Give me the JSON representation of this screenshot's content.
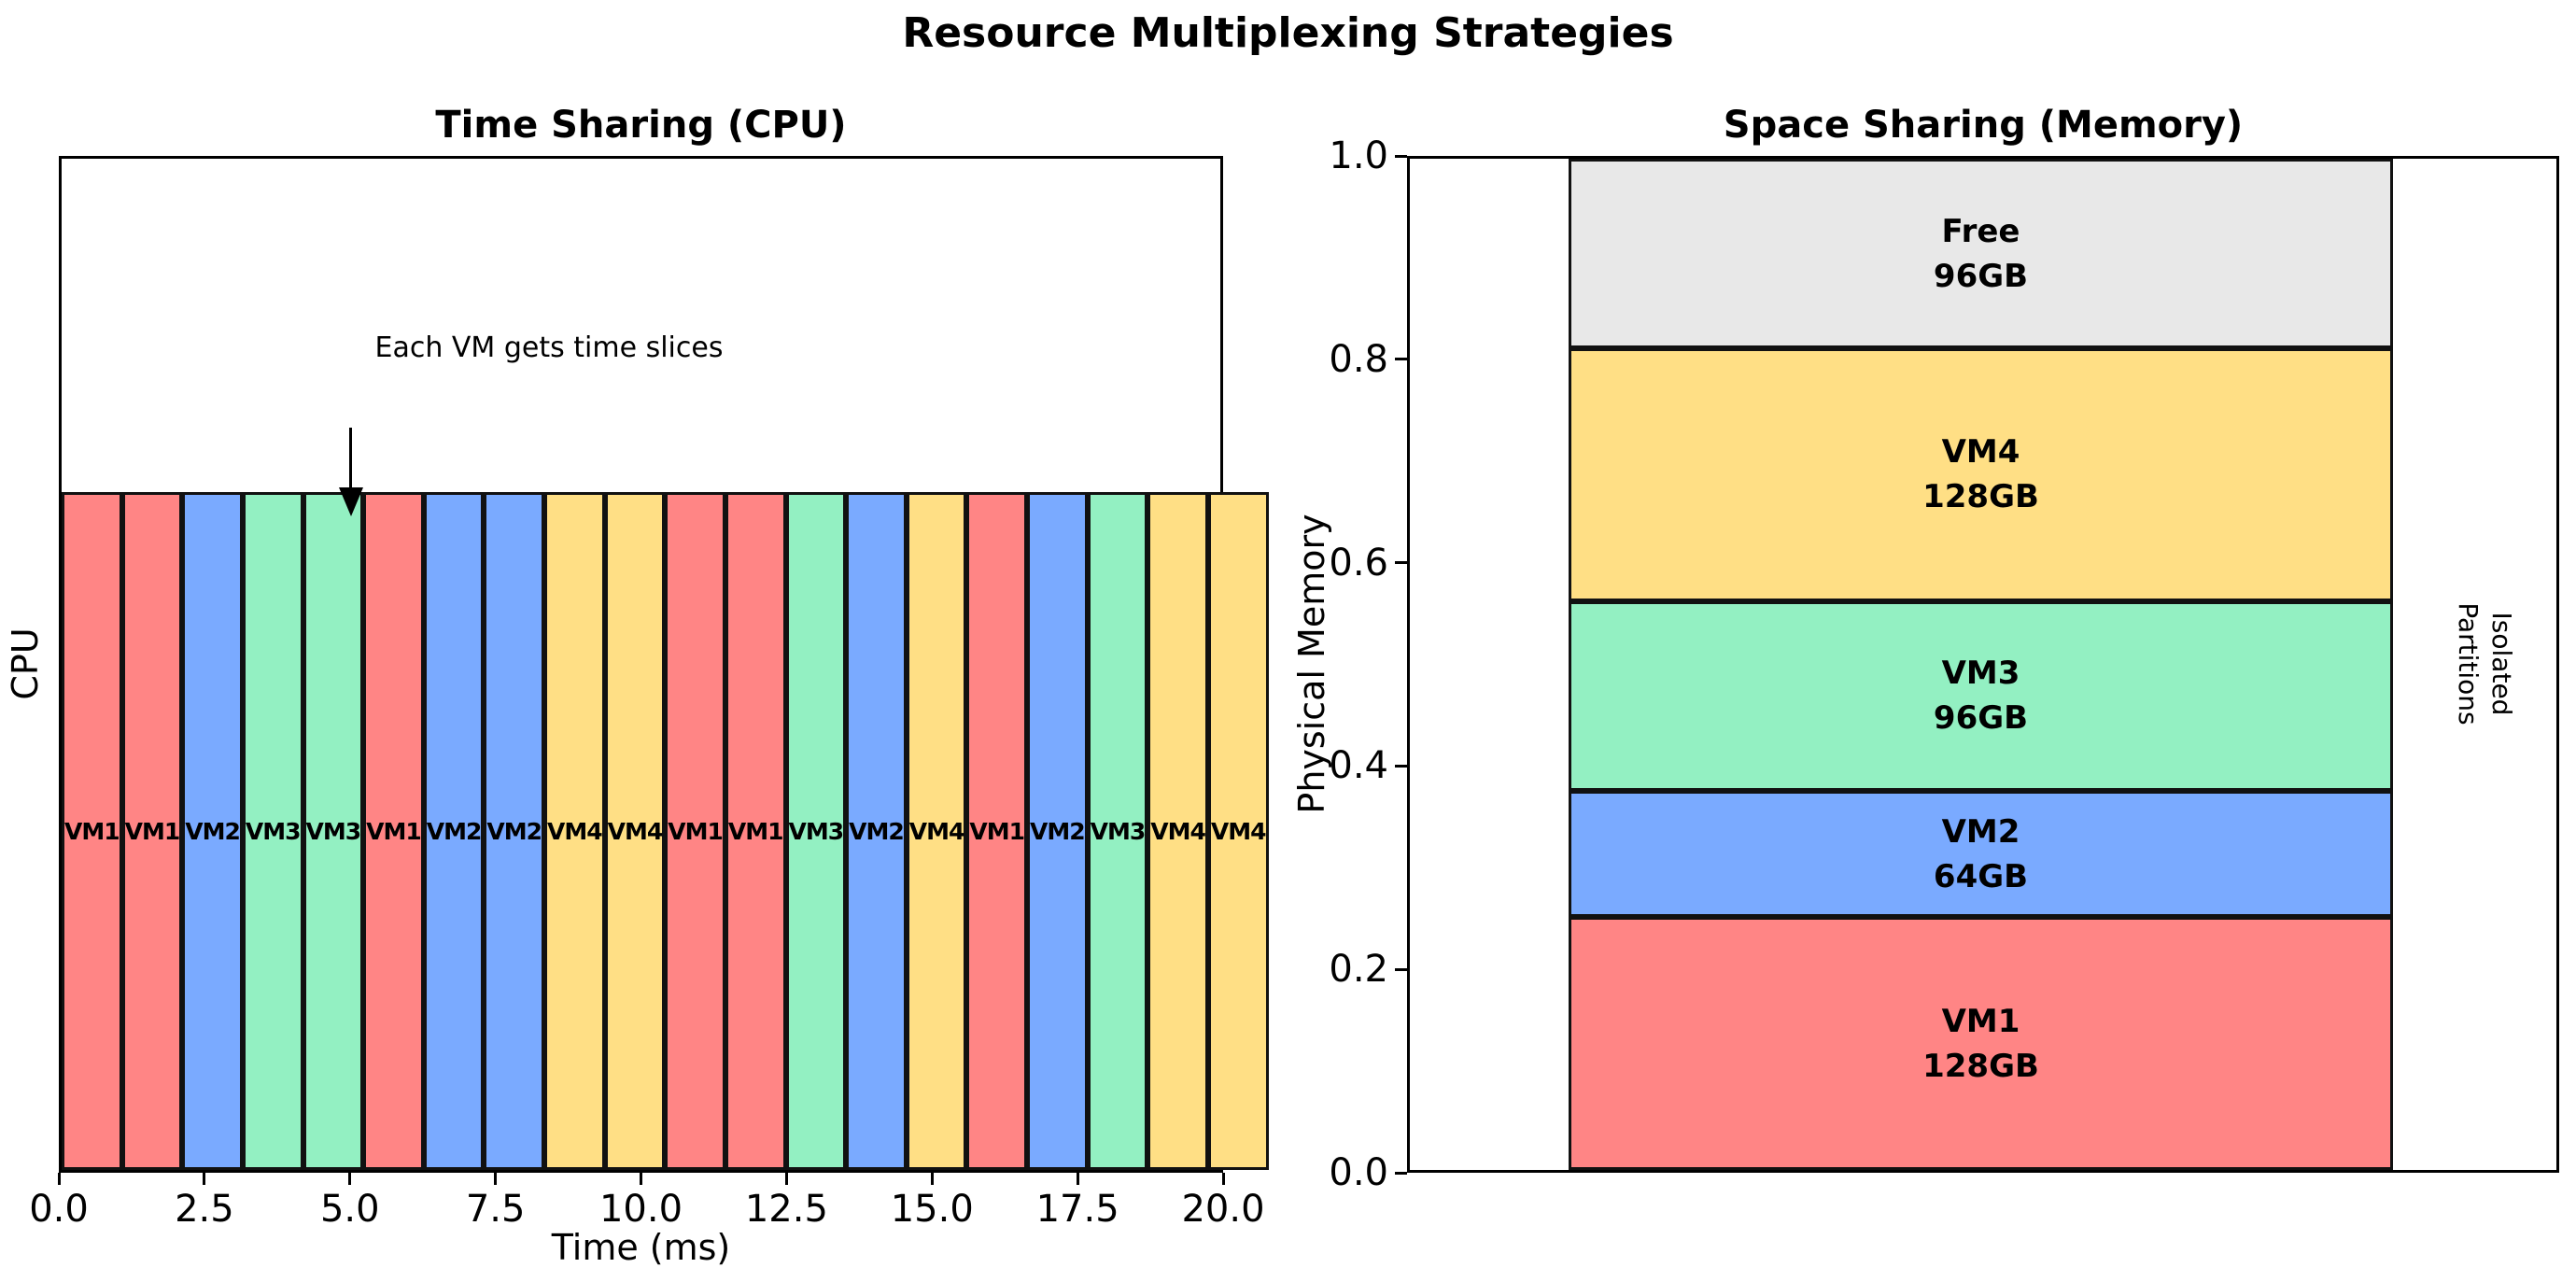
{
  "figure": {
    "title": "Resource Multiplexing Strategies"
  },
  "chart_data": [
    {
      "type": "bar",
      "title": "Time Sharing (CPU)",
      "xlabel": "Time (ms)",
      "ylabel": "CPU",
      "xlim": [
        0,
        20
      ],
      "xticks": [
        "0.0",
        "2.5",
        "5.0",
        "7.5",
        "10.0",
        "12.5",
        "15.0",
        "17.5",
        "20.0"
      ],
      "annotation": {
        "text": "Each VM gets time slices",
        "arrow_x": 5.0
      },
      "slice_duration_ms": 1,
      "slices": [
        "VM1",
        "VM1",
        "VM2",
        "VM3",
        "VM3",
        "VM1",
        "VM2",
        "VM2",
        "VM4",
        "VM4",
        "VM1",
        "VM1",
        "VM3",
        "VM2",
        "VM4",
        "VM1",
        "VM2",
        "VM3",
        "VM4",
        "VM4"
      ],
      "colors": {
        "VM1": "#FF8585",
        "VM2": "#7AAAFF",
        "VM3": "#93F0C2",
        "VM4": "#FFDF85"
      },
      "edge_color": "#111111",
      "bar_height_fraction_of_axis": 0.667
    },
    {
      "type": "stacked-bar",
      "title": "Space Sharing (Memory)",
      "ylabel": "Physical Memory",
      "yticks": [
        "0.0",
        "0.2",
        "0.4",
        "0.6",
        "0.8",
        "1.0"
      ],
      "ylim": [
        0,
        1
      ],
      "right_label": {
        "line1": "Isolated",
        "line2": "Partitions"
      },
      "segments": [
        {
          "name": "VM1",
          "size": "128GB",
          "fraction": 0.25,
          "color": "#FF8585"
        },
        {
          "name": "VM2",
          "size": "64GB",
          "fraction": 0.125,
          "color": "#7AAAFF"
        },
        {
          "name": "VM3",
          "size": "96GB",
          "fraction": 0.1875,
          "color": "#93F0C2"
        },
        {
          "name": "VM4",
          "size": "128GB",
          "fraction": 0.25,
          "color": "#FFDF85"
        },
        {
          "name": "Free",
          "size": "96GB",
          "fraction": 0.1875,
          "color": "#E8E8E8"
        }
      ],
      "edge_color": "#111111"
    }
  ]
}
